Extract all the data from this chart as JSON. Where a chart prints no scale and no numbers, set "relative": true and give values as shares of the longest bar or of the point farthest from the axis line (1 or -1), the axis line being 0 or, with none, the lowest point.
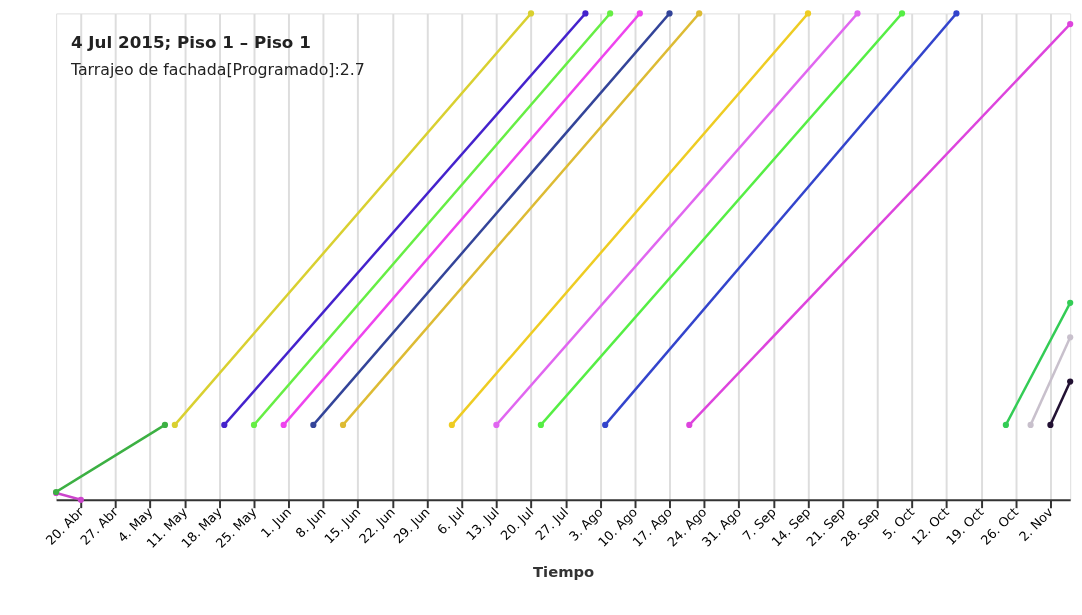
{
  "chart_data": {
    "type": "line",
    "relative": true,
    "xlabel": "Tiempo",
    "xlim": [
      "2015-04-15",
      "2015-11-06"
    ],
    "xticks": [
      {
        "value": "2015-04-20",
        "label": "20. Abr"
      },
      {
        "value": "2015-04-27",
        "label": "27. Abr"
      },
      {
        "value": "2015-05-04",
        "label": "4. May"
      },
      {
        "value": "2015-05-11",
        "label": "11. May"
      },
      {
        "value": "2015-05-18",
        "label": "18. May"
      },
      {
        "value": "2015-05-25",
        "label": "25. May"
      },
      {
        "value": "2015-06-01",
        "label": "1. Jun"
      },
      {
        "value": "2015-06-08",
        "label": "8. Jun"
      },
      {
        "value": "2015-06-15",
        "label": "15. Jun"
      },
      {
        "value": "2015-06-22",
        "label": "22. Jun"
      },
      {
        "value": "2015-06-29",
        "label": "29. Jun"
      },
      {
        "value": "2015-07-06",
        "label": "6. Jul"
      },
      {
        "value": "2015-07-13",
        "label": "13. Jul"
      },
      {
        "value": "2015-07-20",
        "label": "20. Jul"
      },
      {
        "value": "2015-07-27",
        "label": "27. Jul"
      },
      {
        "value": "2015-08-03",
        "label": "3. Ago"
      },
      {
        "value": "2015-08-10",
        "label": "10. Ago"
      },
      {
        "value": "2015-08-17",
        "label": "17. Ago"
      },
      {
        "value": "2015-08-24",
        "label": "24. Ago"
      },
      {
        "value": "2015-08-31",
        "label": "31. Ago"
      },
      {
        "value": "2015-09-07",
        "label": "7. Sep"
      },
      {
        "value": "2015-09-14",
        "label": "14. Sep"
      },
      {
        "value": "2015-09-21",
        "label": "21. Sep"
      },
      {
        "value": "2015-09-28",
        "label": "28. Sep"
      },
      {
        "value": "2015-10-05",
        "label": "5. Oct"
      },
      {
        "value": "2015-10-12",
        "label": "12. Oct"
      },
      {
        "value": "2015-10-19",
        "label": "19. Oct"
      },
      {
        "value": "2015-10-26",
        "label": "26. Oct"
      },
      {
        "value": "2015-11-02",
        "label": "2. Nov"
      }
    ],
    "grid": "x",
    "marker": "circle",
    "line_style": "solid",
    "series": [
      {
        "color": "#3cb043",
        "x": [
          "2015-04-15",
          "2015-05-07"
        ],
        "values": [
          0.016,
          0.154
        ]
      },
      {
        "color": "#cc44cc",
        "x": [
          "2015-04-15",
          "2015-04-20"
        ],
        "values": [
          0.014,
          0
        ]
      },
      {
        "color": "#d9d030",
        "x": [
          "2015-05-09",
          "2015-07-20"
        ],
        "values": [
          0.154,
          1
        ]
      },
      {
        "color": "#4422cc",
        "x": [
          "2015-05-19",
          "2015-07-31"
        ],
        "values": [
          0.154,
          1
        ]
      },
      {
        "color": "#66ee44",
        "x": [
          "2015-05-25",
          "2015-08-05"
        ],
        "values": [
          0.154,
          1
        ]
      },
      {
        "color": "#ee44ee",
        "x": [
          "2015-05-31",
          "2015-08-11"
        ],
        "values": [
          0.154,
          1
        ]
      },
      {
        "color": "#334499",
        "x": [
          "2015-06-06",
          "2015-08-17"
        ],
        "values": [
          0.154,
          1
        ]
      },
      {
        "color": "#ddbb33",
        "x": [
          "2015-06-12",
          "2015-08-23"
        ],
        "values": [
          0.154,
          1
        ]
      },
      {
        "color": "#eecc22",
        "x": [
          "2015-07-04",
          "2015-09-14"
        ],
        "values": [
          0.154,
          1
        ]
      },
      {
        "color": "#e066f0",
        "x": [
          "2015-07-13",
          "2015-09-24"
        ],
        "values": [
          0.154,
          1
        ]
      },
      {
        "color": "#55ee44",
        "x": [
          "2015-07-22",
          "2015-10-03"
        ],
        "values": [
          0.154,
          1
        ]
      },
      {
        "color": "#3344cc",
        "x": [
          "2015-08-04",
          "2015-10-14"
        ],
        "values": [
          0.154,
          1
        ]
      },
      {
        "color": "#dd44dd",
        "x": [
          "2015-08-21",
          "2015-11-06"
        ],
        "values": [
          0.154,
          0.978
        ]
      },
      {
        "color": "#33cc55",
        "x": [
          "2015-10-24",
          "2015-11-06"
        ],
        "values": [
          0.154,
          0.405
        ]
      },
      {
        "color": "#c8c0cc",
        "x": [
          "2015-10-29",
          "2015-11-06"
        ],
        "values": [
          0.154,
          0.334
        ]
      },
      {
        "color": "#221133",
        "x": [
          "2015-11-02",
          "2015-11-06"
        ],
        "values": [
          0.154,
          0.243
        ]
      }
    ],
    "annotations": [
      "4 Jul 2015; Piso 1 – Piso 1",
      "Tarrajeo de fachada[Programado]:2.7"
    ]
  }
}
